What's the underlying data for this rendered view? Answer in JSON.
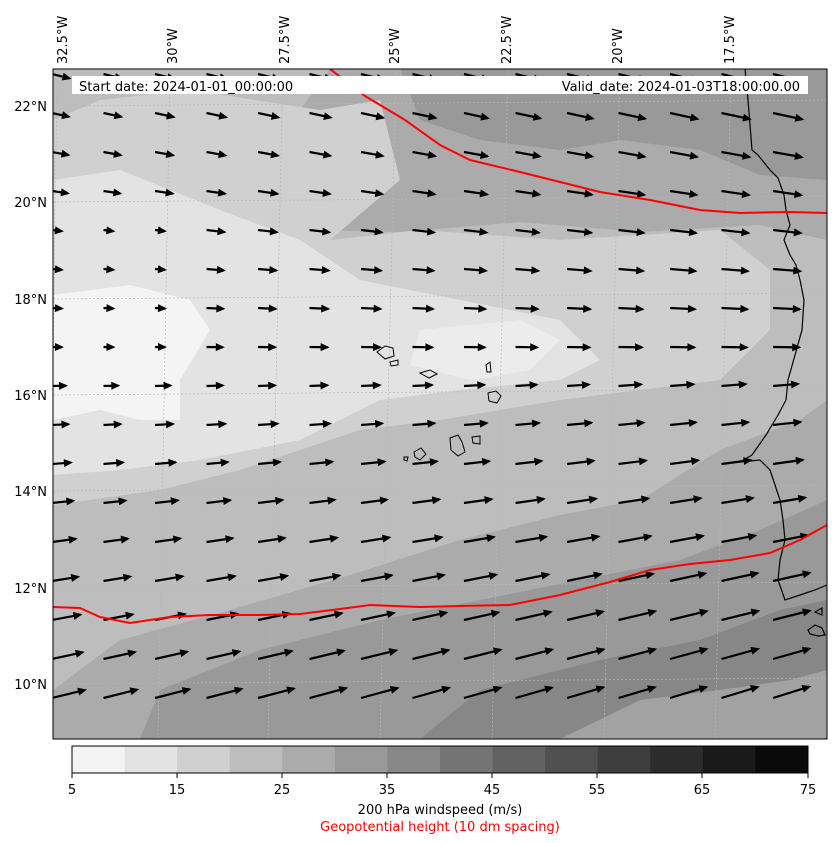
{
  "map": {
    "start_date": "Start date: 2024-01-01_00:00:00",
    "valid_date": "Valid_date: 2024-01-03T18:00:00.00",
    "lon_ticks": [
      "32.5°W",
      "30°W",
      "27.5°W",
      "25°W",
      "22.5°W",
      "20°W",
      "17.5°W"
    ],
    "lat_ticks": [
      "22°N",
      "20°N",
      "18°N",
      "16°N",
      "14°N",
      "12°N",
      "10°N"
    ],
    "lon_values": [
      -32.5,
      -30,
      -27.5,
      -25,
      -22.5,
      -20,
      -17.5
    ],
    "lat_values": [
      22,
      20,
      18,
      16,
      14,
      12,
      10
    ],
    "geopotential_contour_color": "#ff0000",
    "coastline_color": "#000000"
  },
  "colorbar": {
    "ticks": [
      "5",
      "15",
      "25",
      "35",
      "45",
      "55",
      "65",
      "75"
    ],
    "levels": [
      5,
      10,
      15,
      20,
      25,
      30,
      35,
      40,
      45,
      50,
      55,
      60,
      65,
      70,
      75
    ],
    "colors": [
      "#f4f4f4",
      "#e3e3e3",
      "#d0d0d0",
      "#bdbdbd",
      "#ababab",
      "#999999",
      "#878787",
      "#747474",
      "#626262",
      "#505050",
      "#3e3e3e",
      "#2c2c2c",
      "#1a1a1a",
      "#0a0a0a"
    ],
    "label": "200 hPa windspeed (m/s)",
    "sublabel": "Geopotential height (10 dm spacing)",
    "sublabel_color": "#ff0000"
  }
}
